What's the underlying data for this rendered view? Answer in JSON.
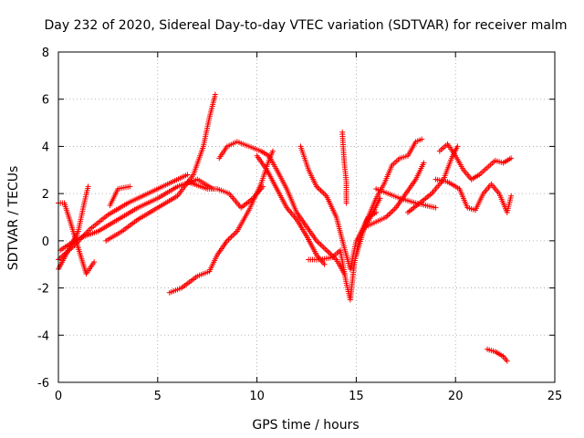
{
  "chart_data": {
    "type": "scatter",
    "title": "Day 232 of 2020, Sidereal Day-to-day VTEC variation (SDTVAR) for receiver malm",
    "xlabel": "GPS time / hours",
    "ylabel": "SDTVAR / TECUs",
    "xlim": [
      0,
      25
    ],
    "ylim": [
      -6,
      8
    ],
    "xticks": [
      0,
      5,
      10,
      15,
      20,
      25
    ],
    "yticks": [
      -6,
      -4,
      -2,
      0,
      2,
      4,
      6,
      8
    ],
    "grid": true,
    "marker": "+",
    "color": "#ff0000",
    "series": [
      {
        "name": "track1",
        "points": [
          [
            0.0,
            1.6
          ],
          [
            0.3,
            1.6
          ],
          [
            0.6,
            0.8
          ],
          [
            1.0,
            -0.3
          ],
          [
            1.4,
            -1.4
          ],
          [
            1.8,
            -0.9
          ]
        ]
      },
      {
        "name": "track2",
        "points": [
          [
            0.0,
            -1.2
          ],
          [
            0.5,
            -0.4
          ],
          [
            1.0,
            0.4
          ],
          [
            1.3,
            1.6
          ],
          [
            1.5,
            2.3
          ]
        ]
      },
      {
        "name": "track3",
        "points": [
          [
            0.0,
            -0.8
          ],
          [
            0.8,
            -0.2
          ],
          [
            1.6,
            0.5
          ],
          [
            2.5,
            1.1
          ],
          [
            3.5,
            1.6
          ],
          [
            4.5,
            2.0
          ],
          [
            5.5,
            2.4
          ],
          [
            6.5,
            2.8
          ]
        ]
      },
      {
        "name": "track4",
        "points": [
          [
            0.1,
            -0.4
          ],
          [
            1.0,
            0.1
          ],
          [
            2.0,
            0.4
          ],
          [
            3.0,
            0.9
          ],
          [
            4.0,
            1.4
          ],
          [
            5.0,
            1.8
          ],
          [
            6.0,
            2.3
          ],
          [
            7.0,
            2.6
          ],
          [
            7.8,
            2.2
          ]
        ]
      },
      {
        "name": "track5",
        "points": [
          [
            2.4,
            0.0
          ],
          [
            3.2,
            0.4
          ],
          [
            4.0,
            0.9
          ],
          [
            5.0,
            1.4
          ],
          [
            6.0,
            1.9
          ],
          [
            6.8,
            2.8
          ],
          [
            7.3,
            4.0
          ],
          [
            7.6,
            5.2
          ],
          [
            7.9,
            6.2
          ]
        ]
      },
      {
        "name": "track6",
        "points": [
          [
            2.6,
            1.5
          ],
          [
            3.0,
            2.2
          ],
          [
            3.6,
            2.3
          ]
        ]
      },
      {
        "name": "track7",
        "points": [
          [
            6.5,
            2.5
          ],
          [
            7.5,
            2.2
          ],
          [
            8.0,
            2.2
          ],
          [
            8.6,
            2.0
          ],
          [
            9.2,
            1.4
          ],
          [
            9.8,
            1.8
          ],
          [
            10.3,
            2.3
          ]
        ]
      },
      {
        "name": "track8",
        "points": [
          [
            5.6,
            -2.2
          ],
          [
            6.2,
            -2.0
          ],
          [
            7.0,
            -1.5
          ],
          [
            7.6,
            -1.3
          ],
          [
            8.0,
            -0.6
          ],
          [
            8.5,
            0.0
          ],
          [
            9.0,
            0.4
          ],
          [
            9.6,
            1.3
          ],
          [
            10.2,
            2.4
          ],
          [
            10.6,
            3.4
          ],
          [
            10.8,
            3.8
          ]
        ]
      },
      {
        "name": "track9",
        "points": [
          [
            8.1,
            3.5
          ],
          [
            8.5,
            4.0
          ],
          [
            9.0,
            4.2
          ],
          [
            9.6,
            4.0
          ],
          [
            10.2,
            3.8
          ],
          [
            10.6,
            3.6
          ],
          [
            11.0,
            3.0
          ],
          [
            11.5,
            2.2
          ],
          [
            12.0,
            1.2
          ],
          [
            12.5,
            0.6
          ],
          [
            13.0,
            0.0
          ],
          [
            13.5,
            -0.4
          ],
          [
            14.0,
            -0.8
          ],
          [
            14.4,
            -1.4
          ]
        ]
      },
      {
        "name": "track10",
        "points": [
          [
            10.0,
            3.6
          ],
          [
            10.5,
            3.0
          ],
          [
            11.0,
            2.2
          ],
          [
            11.5,
            1.4
          ],
          [
            12.0,
            0.9
          ],
          [
            12.5,
            0.2
          ],
          [
            13.0,
            -0.6
          ],
          [
            13.4,
            -1.0
          ]
        ]
      },
      {
        "name": "track11",
        "points": [
          [
            12.2,
            4.0
          ],
          [
            12.6,
            3.0
          ],
          [
            13.0,
            2.3
          ],
          [
            13.5,
            1.9
          ],
          [
            14.0,
            1.0
          ],
          [
            14.4,
            -0.3
          ],
          [
            14.7,
            -1.2
          ],
          [
            15.0,
            0.0
          ],
          [
            15.6,
            0.8
          ],
          [
            16.2,
            1.8
          ]
        ]
      },
      {
        "name": "track12",
        "points": [
          [
            12.6,
            -0.8
          ],
          [
            13.2,
            -0.8
          ],
          [
            13.8,
            -0.7
          ],
          [
            14.2,
            -0.4
          ],
          [
            14.5,
            -1.8
          ],
          [
            14.7,
            -2.5
          ],
          [
            14.9,
            -1.0
          ],
          [
            15.2,
            0.3
          ],
          [
            15.6,
            1.0
          ],
          [
            16.0,
            1.2
          ]
        ]
      },
      {
        "name": "track13",
        "points": [
          [
            14.3,
            4.6
          ],
          [
            14.35,
            3.9
          ],
          [
            14.4,
            3.3
          ],
          [
            14.5,
            2.5
          ],
          [
            14.5,
            1.6
          ]
        ]
      },
      {
        "name": "track14",
        "points": [
          [
            15.0,
            -0.6
          ],
          [
            15.5,
            0.8
          ],
          [
            16.0,
            1.8
          ],
          [
            16.4,
            2.4
          ],
          [
            16.8,
            3.2
          ],
          [
            17.2,
            3.5
          ],
          [
            17.6,
            3.6
          ],
          [
            18.0,
            4.2
          ],
          [
            18.3,
            4.3
          ]
        ]
      },
      {
        "name": "track15",
        "points": [
          [
            15.5,
            0.6
          ],
          [
            16.0,
            0.8
          ],
          [
            16.5,
            1.0
          ],
          [
            17.0,
            1.4
          ],
          [
            17.5,
            2.0
          ],
          [
            18.0,
            2.6
          ],
          [
            18.4,
            3.3
          ]
        ]
      },
      {
        "name": "track16",
        "points": [
          [
            16.0,
            2.2
          ],
          [
            16.6,
            2.0
          ],
          [
            17.2,
            1.8
          ],
          [
            18.0,
            1.6
          ],
          [
            19.0,
            1.4
          ]
        ]
      },
      {
        "name": "track17",
        "points": [
          [
            17.6,
            1.2
          ],
          [
            18.2,
            1.6
          ],
          [
            18.8,
            2.0
          ],
          [
            19.4,
            2.6
          ],
          [
            19.8,
            3.5
          ],
          [
            20.1,
            4.0
          ]
        ]
      },
      {
        "name": "track18",
        "points": [
          [
            19.2,
            3.8
          ],
          [
            19.6,
            4.1
          ],
          [
            20.0,
            3.6
          ],
          [
            20.4,
            3.0
          ],
          [
            20.8,
            2.6
          ],
          [
            21.2,
            2.8
          ],
          [
            21.6,
            3.1
          ],
          [
            22.0,
            3.4
          ],
          [
            22.4,
            3.3
          ],
          [
            22.8,
            3.5
          ]
        ]
      },
      {
        "name": "track19",
        "points": [
          [
            19.0,
            2.6
          ],
          [
            19.6,
            2.5
          ],
          [
            20.2,
            2.2
          ],
          [
            20.6,
            1.4
          ],
          [
            21.0,
            1.3
          ],
          [
            21.4,
            2.0
          ],
          [
            21.8,
            2.4
          ],
          [
            22.2,
            2.0
          ],
          [
            22.6,
            1.2
          ],
          [
            22.8,
            1.9
          ]
        ]
      },
      {
        "name": "track20",
        "points": [
          [
            21.6,
            -4.6
          ],
          [
            22.0,
            -4.7
          ],
          [
            22.4,
            -4.9
          ],
          [
            22.6,
            -5.1
          ]
        ]
      }
    ]
  }
}
